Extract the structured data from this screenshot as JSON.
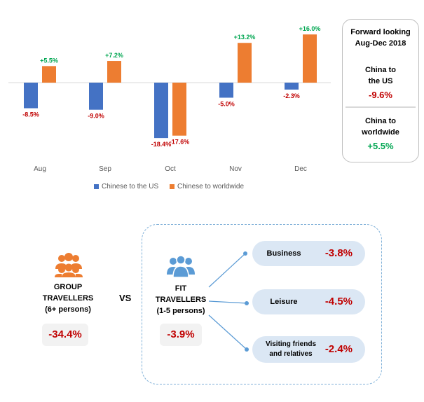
{
  "chart_data": {
    "type": "bar",
    "categories": [
      "Aug",
      "Sep",
      "Oct",
      "Nov",
      "Dec"
    ],
    "series": [
      {
        "name": "Chinese to the US",
        "color": "#4472c4",
        "values": [
          -8.5,
          -9.0,
          -18.4,
          -5.0,
          -2.3
        ]
      },
      {
        "name": "Chinese to worldwide",
        "color": "#ed7d31",
        "values": [
          5.5,
          7.2,
          -17.6,
          13.2,
          16.0
        ]
      }
    ],
    "data_labels": {
      "Chinese to the US": [
        "-8.5%",
        "-9.0%",
        "-18.4%",
        "-5.0%",
        "-2.3%"
      ],
      "Chinese to worldwide": [
        "+5.5%",
        "+7.2%",
        "-17.6%",
        "+13.2%",
        "+16.0%"
      ]
    },
    "ylim": [
      -20,
      18
    ],
    "legend": "bottom",
    "grid": false
  },
  "forward_box": {
    "title_line1": "Forward looking",
    "title_line2": "Aug-Dec 2018",
    "us_label_line1": "China to",
    "us_label_line2": "the US",
    "us_value": "-9.6%",
    "ww_label_line1": "China to",
    "ww_label_line2": "worldwide",
    "ww_value": "+5.5%"
  },
  "travellers": {
    "group": {
      "line1": "GROUP",
      "line2": "TRAVELLERS",
      "line3": "(6+ persons)",
      "value": "-34.4%",
      "icon": "group-people-icon"
    },
    "vs": "VS",
    "fit": {
      "line1": "FIT",
      "line2": "TRAVELLERS",
      "line3": "(1-5 persons)",
      "value": "-3.9%",
      "icon": "fit-people-icon"
    }
  },
  "segments": [
    {
      "label_line1": "Business",
      "label_line2": "",
      "value": "-3.8%"
    },
    {
      "label_line1": "Leisure",
      "label_line2": "",
      "value": "-4.5%"
    },
    {
      "label_line1": "Visiting friends",
      "label_line2": "and relatives",
      "value": "-2.4%"
    }
  ],
  "colors": {
    "negative": "#c00000",
    "positive": "#00a651",
    "us": "#4472c4",
    "worldwide": "#ed7d31",
    "group_icon": "#ed7d31",
    "fit_icon": "#5b9bd5",
    "segment_pill": "#dbe7f4"
  }
}
